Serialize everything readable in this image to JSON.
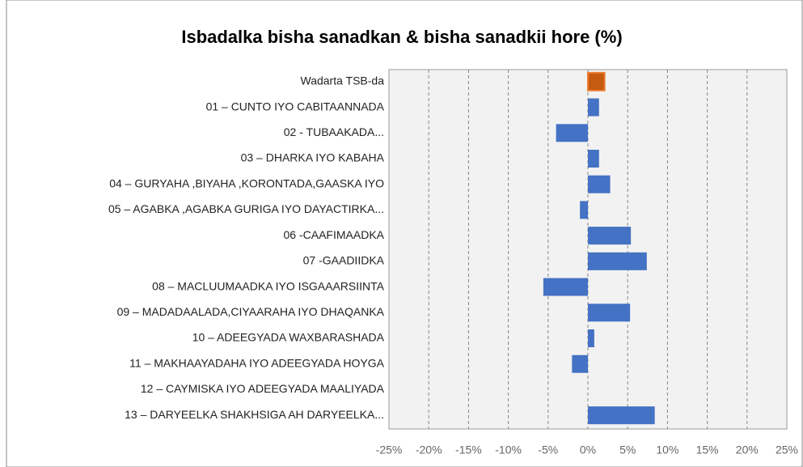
{
  "chart_data": {
    "type": "hbar",
    "title": "Isbadalka bisha sanadkan & bisha sanadkii hore (%)",
    "categories": [
      "Wadarta TSB-da",
      "01 – CUNTO IYO CABITAANNADA",
      "02 - TUBAAKADA...",
      "03 – DHARKA IYO KABAHA",
      "04 – GURYAHA ,BIYAHA ,KORONTADA,GAASKA IYO",
      "05 – AGABKA ,AGABKA GURIGA IYO DAYACTIRKA...",
      "06 -CAAFIMAADKA",
      "07 -GAADIIDKA",
      "08 – MACLUUMAADKA IYO ISGAAARSIINTA",
      "09 – MADADAALADA,CIYAARAHA IYO DHAQANKA",
      "10 – ADEEGYADA WAXBARASHADA",
      "11 – MAKHAAYADAHA IYO ADEEGYADA HOYGA",
      "12 – CAYMISKA IYO ADEEGYADA MAALIYADA",
      "13 – DARYEELKA SHAKHSIGA AH DARYEELKA..."
    ],
    "values": [
      2.1,
      1.4,
      -4.0,
      1.4,
      2.8,
      -1.0,
      5.4,
      7.4,
      -5.6,
      5.3,
      0.8,
      -2.0,
      0,
      8.4
    ],
    "colors": [
      "#c55a11",
      "#4472c4",
      "#4472c4",
      "#4472c4",
      "#4472c4",
      "#4472c4",
      "#4472c4",
      "#4472c4",
      "#4472c4",
      "#4472c4",
      "#4472c4",
      "#4472c4",
      "#4472c4",
      "#4472c4"
    ],
    "xlim": [
      -25,
      25
    ],
    "xticks": [
      {
        "value": -25,
        "label": "-25%"
      },
      {
        "value": -20,
        "label": "-20%"
      },
      {
        "value": -15,
        "label": "-15%"
      },
      {
        "value": -10,
        "label": "-10%"
      },
      {
        "value": -5,
        "label": "-5%"
      },
      {
        "value": 0,
        "label": "0%"
      },
      {
        "value": 5,
        "label": "5%"
      },
      {
        "value": 10,
        "label": "10%"
      },
      {
        "value": 15,
        "label": "15%"
      },
      {
        "value": 20,
        "label": "20%"
      },
      {
        "value": 25,
        "label": "25%"
      }
    ],
    "grid": true
  }
}
